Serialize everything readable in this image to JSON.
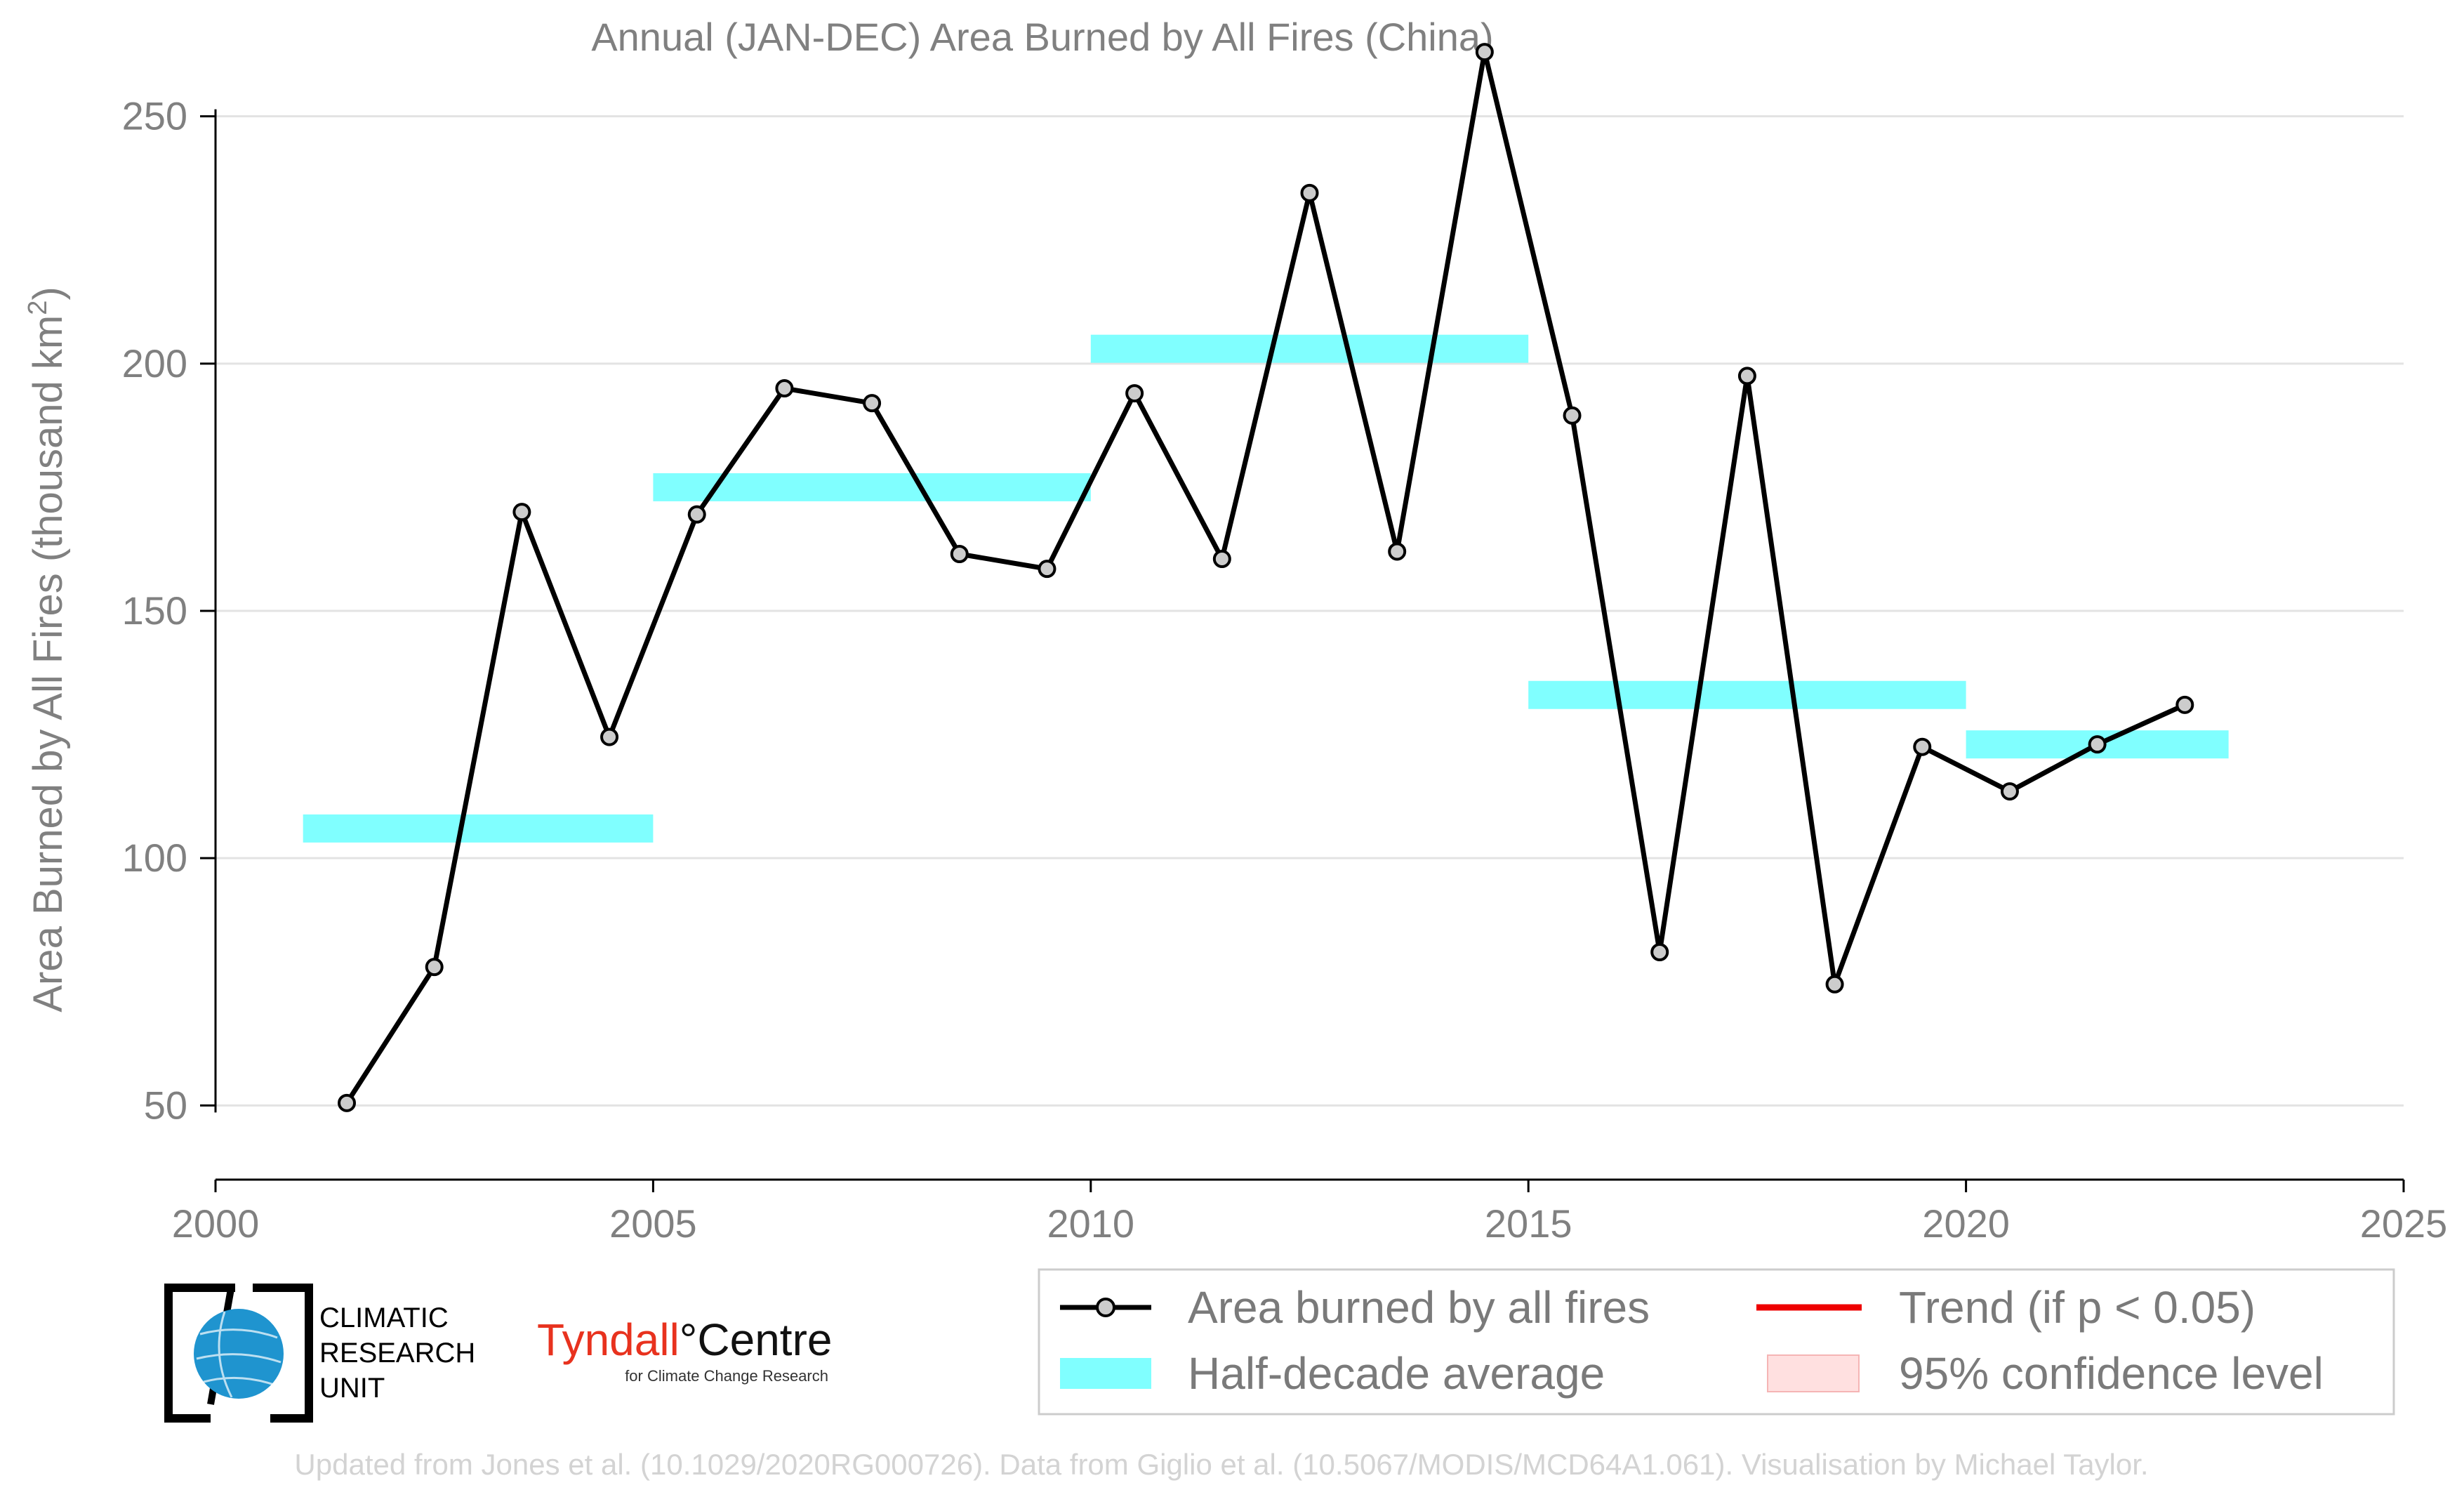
{
  "chart_data": {
    "type": "line",
    "title": "Annual (JAN-DEC) Area Burned by All Fires (China)",
    "ylabel": "Area Burned by All Fires (thousand km",
    "ylabel_superscript": "2",
    "ylabel_close": ")",
    "xlabel": "",
    "xlim": [
      2000,
      2025
    ],
    "ylim": [
      35,
      265
    ],
    "x_ticks": [
      2000,
      2005,
      2010,
      2015,
      2020,
      2025
    ],
    "y_ticks": [
      50,
      100,
      150,
      200,
      250
    ],
    "grid": "horizontal",
    "series": [
      {
        "name": "Area burned by all fires",
        "color": "#000000",
        "marker_fill": "#cccccc",
        "x": [
          2001.5,
          2002.5,
          2003.5,
          2004.5,
          2005.5,
          2006.5,
          2007.5,
          2008.5,
          2009.5,
          2010.5,
          2011.5,
          2012.5,
          2013.5,
          2014.5,
          2015.5,
          2016.5,
          2017.5,
          2018.5,
          2019.5,
          2020.5,
          2021.5,
          2022.5
        ],
        "values": [
          50.5,
          78,
          170,
          124.5,
          169.5,
          195,
          192,
          161.5,
          158.5,
          194,
          160.5,
          234.5,
          162,
          263,
          189.5,
          81,
          197.5,
          74.5,
          122.5,
          113.5,
          123,
          131
        ]
      }
    ],
    "half_decade_average": {
      "name": "Half-decade average",
      "color": "#80ffff",
      "segments": [
        {
          "x0": 2001,
          "x1": 2005,
          "value": 106
        },
        {
          "x0": 2005,
          "x1": 2010,
          "value": 175
        },
        {
          "x0": 2010,
          "x1": 2015,
          "value": 203
        },
        {
          "x0": 2015,
          "x1": 2020,
          "value": 133
        },
        {
          "x0": 2020,
          "x1": 2023,
          "value": 123
        }
      ]
    },
    "legend": {
      "placement": "bottom-right",
      "items": [
        {
          "label": "Area burned by all fires",
          "kind": "line-marker",
          "color": "#000000"
        },
        {
          "label": "Trend (if p < 0.05)",
          "kind": "line",
          "color": "#ee0000"
        },
        {
          "label": "Half-decade average",
          "kind": "band",
          "color": "#80ffff"
        },
        {
          "label": "95% confidence level",
          "kind": "box",
          "color": "#ffe0e0"
        }
      ]
    }
  },
  "logos": {
    "cru_lines": [
      "CLIMATIC",
      "RESEARCH",
      "UNIT"
    ],
    "tyndall_name": "Tyndall",
    "tyndall_suffix": "°Centre",
    "tyndall_sub": "for Climate Change Research"
  },
  "footer": "Updated from Jones et al. (10.1029/2020RG000726). Data from Giglio et al. (10.5067/MODIS/MCD64A1.061). Visualisation by Michael Taylor."
}
